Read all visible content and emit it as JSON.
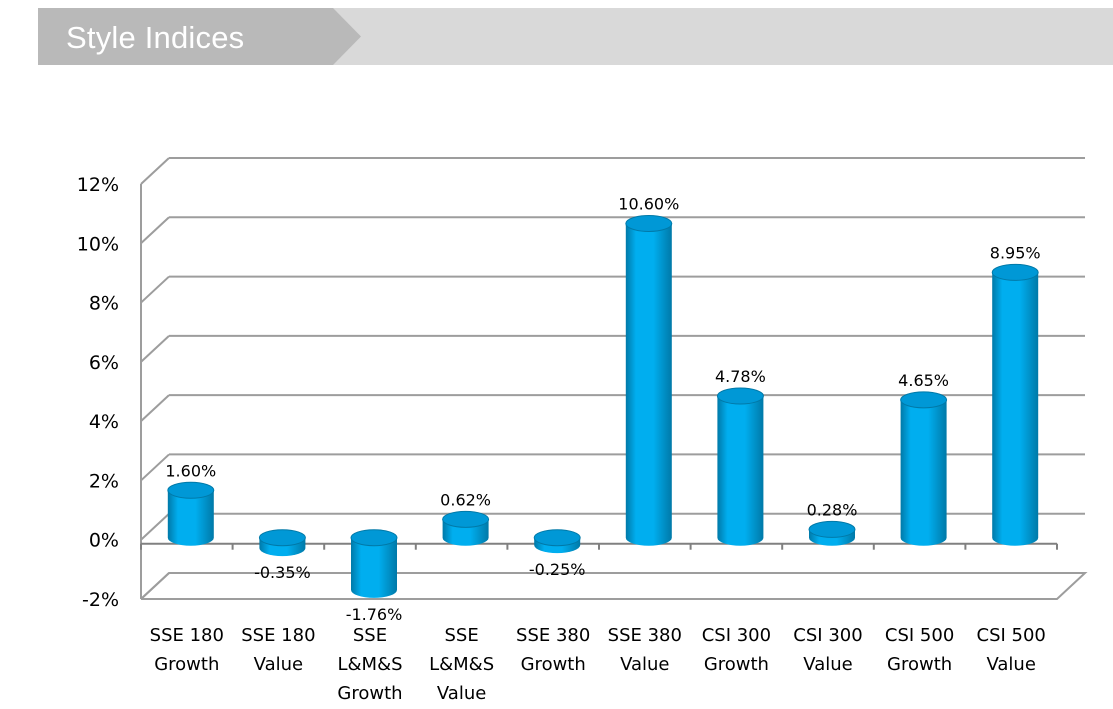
{
  "header": {
    "title": "Style Indices"
  },
  "colors": {
    "header_dark": "#b9b9b9",
    "header_light": "#d9d9d9",
    "bar_fill": "#00aeef",
    "bar_dark": "#0079a8",
    "bar_top": "#0098d6",
    "grid": "#9d9d9d"
  },
  "chart_data": {
    "type": "bar",
    "title": "",
    "xlabel": "",
    "ylabel": "",
    "categories": [
      [
        "SSE 180",
        "Growth"
      ],
      [
        "SSE 180",
        "Value"
      ],
      [
        "SSE",
        "L&M&S",
        "Growth"
      ],
      [
        "SSE",
        "L&M&S",
        "Value"
      ],
      [
        "SSE 380",
        "Growth"
      ],
      [
        "SSE 380",
        "Value"
      ],
      [
        "CSI 300",
        "Growth"
      ],
      [
        "CSI 300",
        "Value"
      ],
      [
        "CSI 500",
        "Growth"
      ],
      [
        "CSI 500",
        "Value"
      ]
    ],
    "values": [
      1.6,
      -0.35,
      -1.76,
      0.62,
      -0.25,
      10.6,
      4.78,
      0.28,
      4.65,
      8.95
    ],
    "value_labels": [
      "1.60%",
      "-0.35%",
      "-1.76%",
      "0.62%",
      "-0.25%",
      "10.60%",
      "4.78%",
      "0.28%",
      "4.65%",
      "8.95%"
    ],
    "ylim": [
      -2,
      12
    ],
    "yticks": [
      -2,
      0,
      2,
      4,
      6,
      8,
      10,
      12
    ],
    "ytick_labels": [
      "-2%",
      "0%",
      "2%",
      "4%",
      "6%",
      "8%",
      "10%",
      "12%"
    ],
    "grid": true,
    "legend": "none",
    "style": "3d-cylinder"
  }
}
